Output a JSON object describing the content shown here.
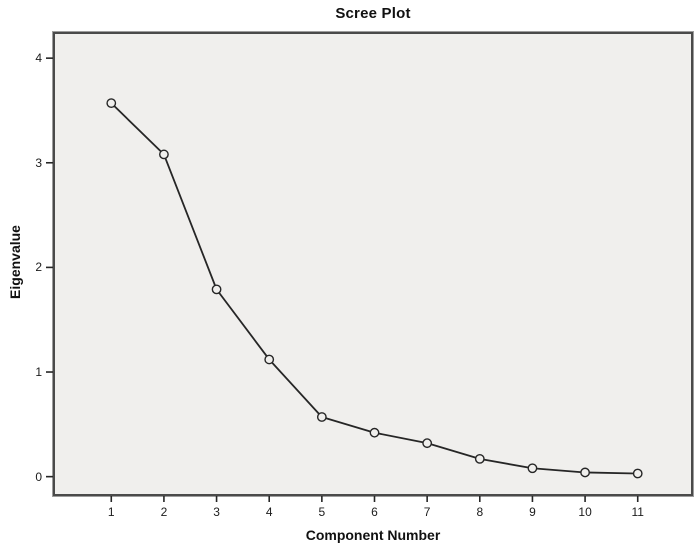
{
  "chart_data": {
    "type": "line",
    "title": "Scree Plot",
    "xlabel": "Component Number",
    "ylabel": "Eigenvalue",
    "x": [
      1,
      2,
      3,
      4,
      5,
      6,
      7,
      8,
      9,
      10,
      11
    ],
    "values": [
      3.57,
      3.08,
      1.79,
      1.12,
      0.57,
      0.42,
      0.32,
      0.17,
      0.08,
      0.04,
      0.03
    ],
    "x_ticks": [
      "1",
      "2",
      "3",
      "4",
      "5",
      "6",
      "7",
      "8",
      "9",
      "10",
      "11"
    ],
    "y_ticks": [
      "0",
      "1",
      "2",
      "3",
      "4"
    ],
    "y_tick_values": [
      0,
      1,
      2,
      3,
      4
    ],
    "ylim": [
      0,
      4
    ],
    "grid": false,
    "legend": "none",
    "marker": "open-circle",
    "colors": {
      "line": "#262626",
      "marker_stroke": "#262626",
      "marker_fill": "#f0efed",
      "plot_background": "#f0efed",
      "frame_border": "#4a4a4a",
      "tick": "#262626",
      "text": "#111111"
    }
  }
}
